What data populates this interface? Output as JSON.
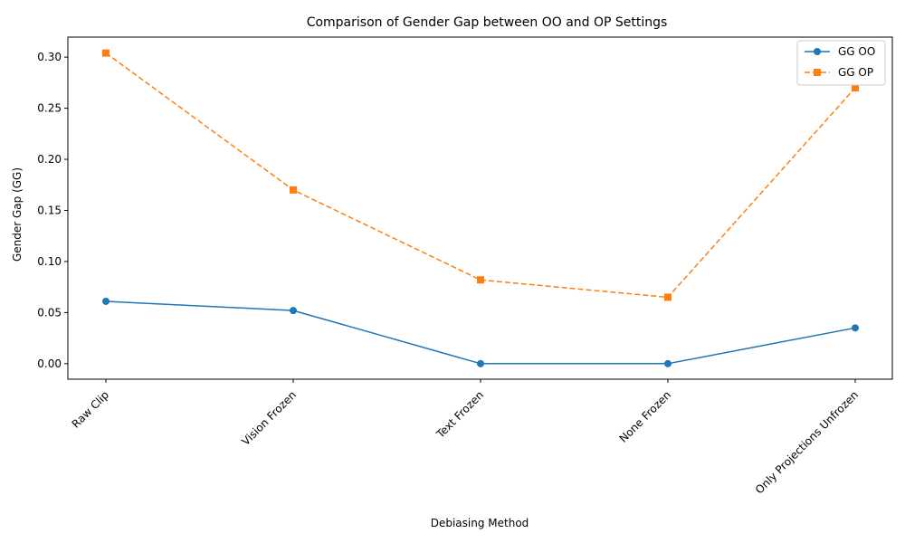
{
  "chart_data": {
    "type": "line",
    "title": "Comparison of Gender Gap between OO and OP Settings",
    "xlabel": "Debiasing Method",
    "ylabel": "Gender Gap (GG)",
    "categories": [
      "Raw Clip",
      "Vision Frozen",
      "Text Frozen",
      "None Frozen",
      "Only Projections Unfrozen"
    ],
    "ylim": [
      -0.0152,
      0.3196
    ],
    "yticks": [
      0.0,
      0.05,
      0.1,
      0.15,
      0.2,
      0.25,
      0.3
    ],
    "ytick_labels": [
      "0.00",
      "0.05",
      "0.10",
      "0.15",
      "0.20",
      "0.25",
      "0.30"
    ],
    "grid": false,
    "legend_position": "top-right",
    "series": [
      {
        "name": "GG OO",
        "values": [
          0.061,
          0.052,
          0.0,
          0.0,
          0.035
        ],
        "color": "#1f77b4",
        "marker": "circle",
        "line_style": "solid"
      },
      {
        "name": "GG OP",
        "values": [
          0.304,
          0.17,
          0.082,
          0.065,
          0.27
        ],
        "color": "#ff7f0e",
        "marker": "square",
        "line_style": "dashed"
      }
    ]
  }
}
